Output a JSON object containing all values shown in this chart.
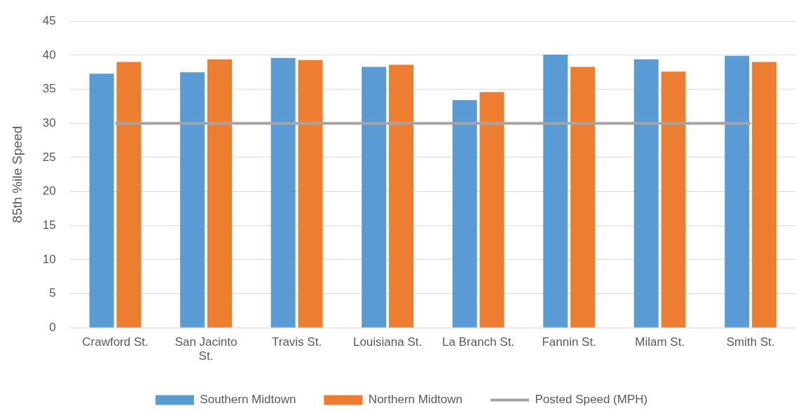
{
  "chart_data": {
    "type": "bar",
    "ylabel": "85th %ile Speed",
    "categories": [
      "Crawford St.",
      "San Jacinto St.",
      "Travis St.",
      "Louisiana St.",
      "La Branch St.",
      "Fannin St.",
      "Milam St.",
      "Smith St."
    ],
    "series": [
      {
        "name": "Southern Midtown",
        "color": "#5b9bd5",
        "values": [
          37.3,
          37.5,
          39.6,
          38.3,
          33.4,
          40.1,
          39.4,
          39.9
        ]
      },
      {
        "name": "Northern Midtown",
        "color": "#ed7d31",
        "values": [
          39.0,
          39.4,
          39.3,
          38.6,
          34.6,
          38.3,
          37.6,
          39.0
        ]
      },
      {
        "name": "Posted Speed (MPH)",
        "type": "line",
        "color": "#a5a5a5",
        "values": [
          30,
          30,
          30,
          30,
          30,
          30,
          30,
          30
        ],
        "marker": "none"
      }
    ],
    "ylim": [
      0,
      45
    ],
    "yticks": [
      0,
      5,
      10,
      15,
      20,
      25,
      30,
      35,
      40,
      45
    ],
    "grid": "y",
    "legend": "bottom"
  }
}
